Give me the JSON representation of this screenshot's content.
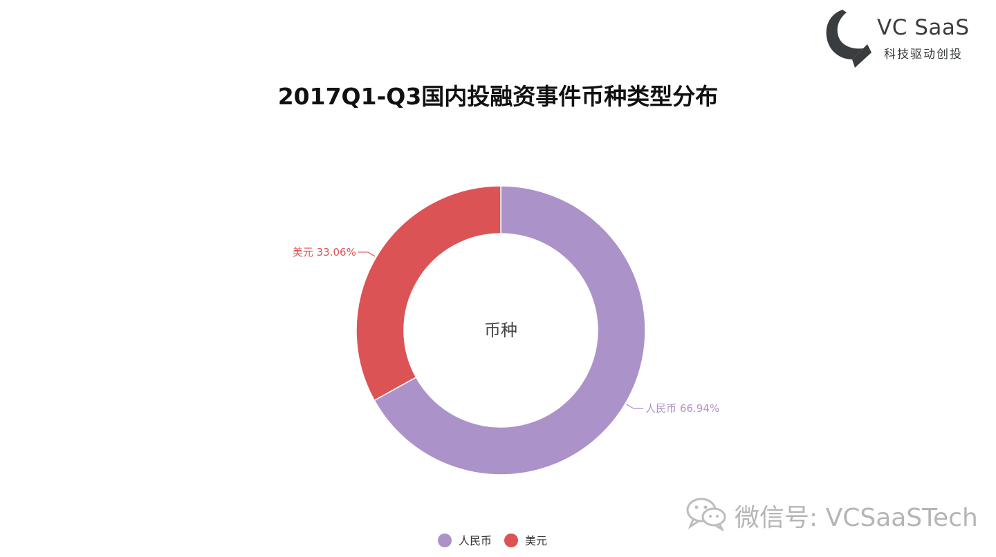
{
  "logo": {
    "brand": "VC SaaS",
    "tagline": "科技驱动创投"
  },
  "watermark": {
    "text": "微信号: VCSaaSTech",
    "icon": "wechat-icon"
  },
  "chart_data": {
    "type": "pie",
    "variant": "donut",
    "title": "2017Q1-Q3国内投融资事件币种类型分布",
    "center_label": "币种",
    "slices": [
      {
        "name": "人民币",
        "percent": 66.94,
        "label": "人民币 66.94%",
        "color": "#ab93c9"
      },
      {
        "name": "美元",
        "percent": 33.06,
        "label": "美元 33.06%",
        "color": "#dc5356"
      }
    ],
    "legend": {
      "placement": "bottom",
      "items": [
        "人民币",
        "美元"
      ]
    }
  }
}
